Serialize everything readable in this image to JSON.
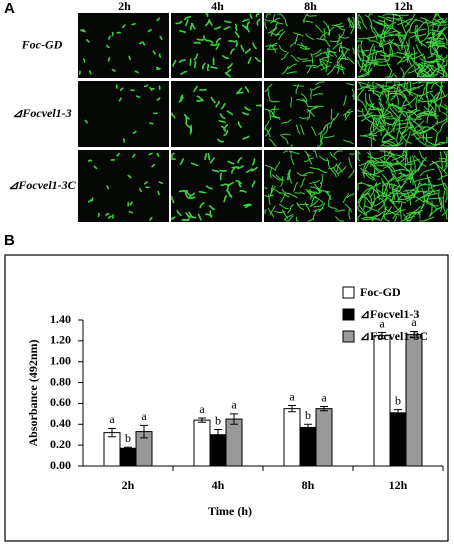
{
  "panel_a": {
    "label": "A",
    "columns": [
      "2h",
      "4h",
      "8h",
      "12h"
    ],
    "rows": [
      "Foc-GD",
      "⊿Focvel1-3",
      "⊿Focvel1-3C"
    ]
  },
  "panel_b_label": "B",
  "chart_data": {
    "type": "bar",
    "x_label": "Time (h)",
    "y_label": "Absorbance (492nm)",
    "categories": [
      "2h",
      "4h",
      "8h",
      "12h"
    ],
    "series": [
      {
        "name": "Foc-GD",
        "color": "#ffffff",
        "values": [
          0.32,
          0.44,
          0.55,
          1.25
        ],
        "errors": [
          0.04,
          0.02,
          0.03,
          0.03
        ],
        "labels": [
          "a",
          "a",
          "a",
          "a"
        ]
      },
      {
        "name": "⊿Focvel1-3",
        "color": "#000000",
        "values": [
          0.17,
          0.3,
          0.37,
          0.51
        ],
        "errors": [
          0.01,
          0.05,
          0.03,
          0.03
        ],
        "labels": [
          "b",
          "b",
          "b",
          "b"
        ]
      },
      {
        "name": "⊿Focvel1-3C",
        "color": "#999999",
        "values": [
          0.33,
          0.45,
          0.55,
          1.26
        ],
        "errors": [
          0.06,
          0.05,
          0.02,
          0.03
        ],
        "labels": [
          "a",
          "a",
          "a",
          "a"
        ]
      }
    ],
    "ylim": [
      0,
      1.4
    ],
    "yticks": [
      {
        "value": 0,
        "label": "0.00"
      },
      {
        "value": 0.2,
        "label": "0.20"
      },
      {
        "value": 0.4,
        "label": "0.40"
      },
      {
        "value": 0.6,
        "label": "0.60"
      },
      {
        "value": 0.8,
        "label": "0.80"
      },
      {
        "value": 1.0,
        "label": "1.00"
      },
      {
        "value": 1.2,
        "label": "1.20"
      },
      {
        "value": 1.4,
        "label": "1.40"
      }
    ],
    "legend": "upper right"
  }
}
